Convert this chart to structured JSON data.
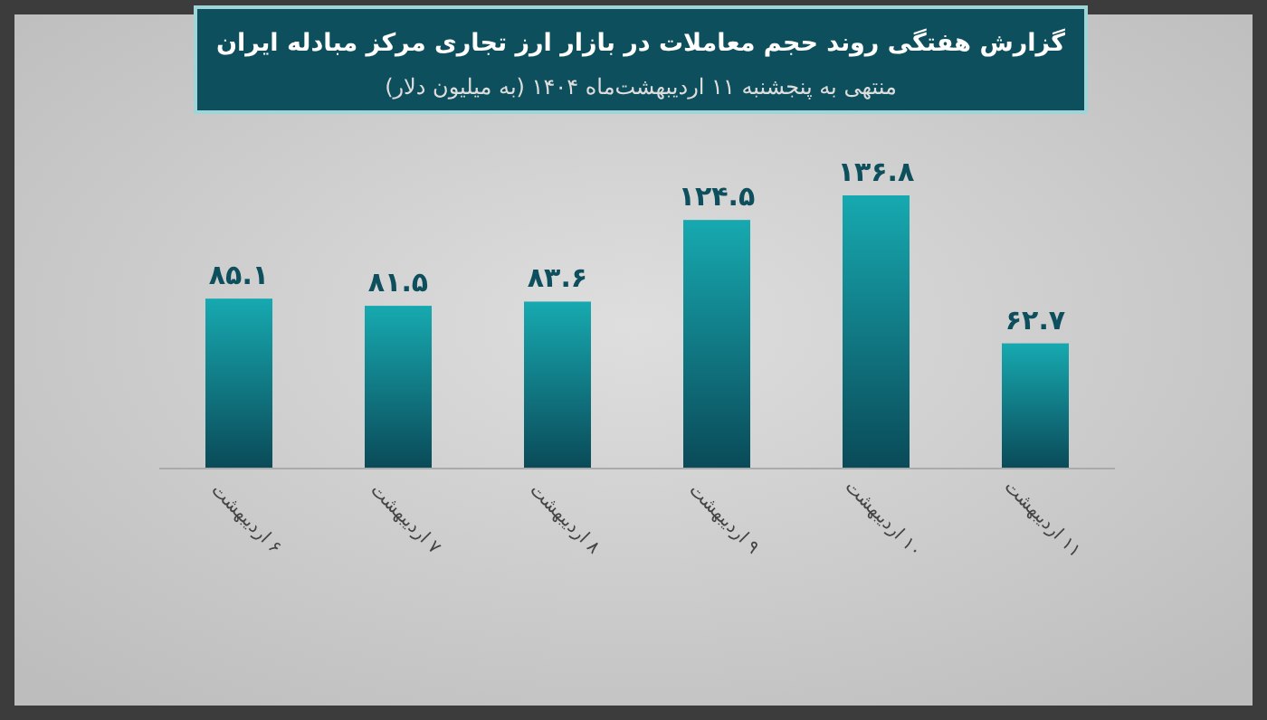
{
  "chart_data": {
    "type": "bar",
    "title": "گزارش هفتگی روند حجم معاملات در بازار ارز تجاری مرکز مبادله ایران",
    "subtitle": "منتهی به پنجشنبه ۱۱ اردیبهشت‌ماه ۱۴۰۴ (به میلیون دلار)",
    "categories": [
      "۶ اردیبهشت",
      "۷ اردیبهشت",
      "۸ اردیبهشت",
      "۹ اردیبهشت",
      "۱۰ اردیبهشت",
      "۱۱ اردیبهشت"
    ],
    "values": [
      85.1,
      81.5,
      83.6,
      124.5,
      136.8,
      62.7
    ],
    "value_labels": [
      "۸۵.۱",
      "۸۱.۵",
      "۸۳.۶",
      "۱۲۴.۵",
      "۱۳۶.۸",
      "۶۲.۷"
    ],
    "color": "#17a9b0"
  }
}
